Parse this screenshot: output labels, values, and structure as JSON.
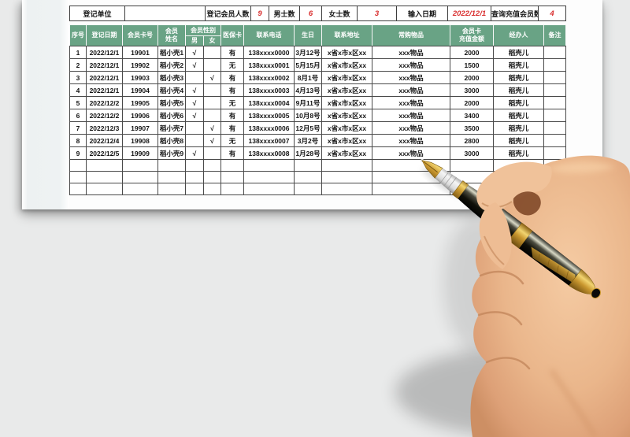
{
  "colors": {
    "background": "#e9eaea",
    "paper": "#fdfdfd",
    "header_green": "#69a385",
    "accent_red": "#d92f2f",
    "grid": "#4a4a4a",
    "pen_gold": "#c9972f",
    "skin": "#e9b58c"
  },
  "info_bar": {
    "unit_label": "登记单位",
    "unit_value": "",
    "member_count_label": "登记会员人数",
    "member_count": "9",
    "male_label": "男士数",
    "male_count": "6",
    "female_label": "女士数",
    "female_count": "3",
    "input_date_label": "输入日期",
    "input_date": "2022/12/1",
    "recharge_query_label": "查询充值会员数",
    "recharge_count": "4"
  },
  "main_table": {
    "headers": {
      "seq": "序号",
      "reg_date": "登记日期",
      "card_no": "会员卡号",
      "name": "会员\n姓名",
      "gender_group": "会员性别",
      "male": "男",
      "female": "女",
      "insurance": "医保卡",
      "phone": "联系电话",
      "birthday": "生日",
      "address": "联系地址",
      "items": "常购物品",
      "recharge": "会员卡\n充值金额",
      "handler": "经办人",
      "remark": "备注"
    },
    "rows": [
      [
        "1",
        "2022/12/1",
        "19901",
        "稻小壳1",
        "√",
        "",
        "有",
        "138xxxx0000",
        "3月12号",
        "x省x市x区xx",
        "xxx物品",
        "2000",
        "稻壳儿",
        ""
      ],
      [
        "2",
        "2022/12/1",
        "19902",
        "稻小壳2",
        "√",
        "",
        "无",
        "138xxxx0001",
        "5月15月",
        "x省x市x区xx",
        "xxx物品",
        "1500",
        "稻壳儿",
        ""
      ],
      [
        "3",
        "2022/12/1",
        "19903",
        "稻小壳3",
        "",
        "√",
        "有",
        "138xxxx0002",
        "8月1号",
        "x省x市x区xx",
        "xxx物品",
        "2000",
        "稻壳儿",
        ""
      ],
      [
        "4",
        "2022/12/1",
        "19904",
        "稻小壳4",
        "√",
        "",
        "有",
        "138xxxx0003",
        "4月13号",
        "x省x市x区xx",
        "xxx物品",
        "3000",
        "稻壳儿",
        ""
      ],
      [
        "5",
        "2022/12/2",
        "19905",
        "稻小壳5",
        "√",
        "",
        "无",
        "138xxxx0004",
        "9月11号",
        "x省x市x区xx",
        "xxx物品",
        "2000",
        "稻壳儿",
        ""
      ],
      [
        "6",
        "2022/12/2",
        "19906",
        "稻小壳6",
        "√",
        "",
        "有",
        "138xxxx0005",
        "10月8号",
        "x省x市x区xx",
        "xxx物品",
        "3400",
        "稻壳儿",
        ""
      ],
      [
        "7",
        "2022/12/3",
        "19907",
        "稻小壳7",
        "",
        "√",
        "有",
        "138xxxx0006",
        "12月5号",
        "x省x市x区xx",
        "xxx物品",
        "3500",
        "稻壳儿",
        ""
      ],
      [
        "8",
        "2022/12/4",
        "19908",
        "稻小壳8",
        "",
        "√",
        "无",
        "138xxxx0007",
        "3月2号",
        "x省x市x区xx",
        "xxx物品",
        "2800",
        "稻壳儿",
        ""
      ],
      [
        "9",
        "2022/12/5",
        "19909",
        "稻小壳9",
        "√",
        "",
        "有",
        "138xxxx0008",
        "1月28号",
        "x省x市x区xx",
        "xxx物品",
        "3000",
        "稻壳儿",
        ""
      ]
    ],
    "empty_row_count": 3
  }
}
